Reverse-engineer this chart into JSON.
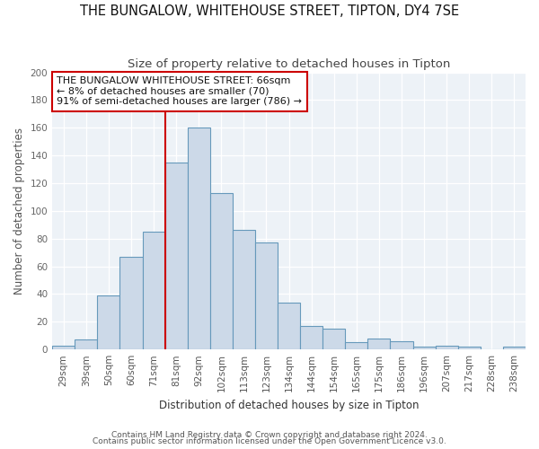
{
  "title": "THE BUNGALOW, WHITEHOUSE STREET, TIPTON, DY4 7SE",
  "subtitle": "Size of property relative to detached houses in Tipton",
  "xlabel": "Distribution of detached houses by size in Tipton",
  "ylabel": "Number of detached properties",
  "bar_labels": [
    "29sqm",
    "39sqm",
    "50sqm",
    "60sqm",
    "71sqm",
    "81sqm",
    "92sqm",
    "102sqm",
    "113sqm",
    "123sqm",
    "134sqm",
    "144sqm",
    "154sqm",
    "165sqm",
    "175sqm",
    "186sqm",
    "196sqm",
    "207sqm",
    "217sqm",
    "228sqm",
    "238sqm"
  ],
  "bar_values": [
    3,
    7,
    39,
    67,
    85,
    135,
    160,
    113,
    86,
    77,
    34,
    17,
    15,
    5,
    8,
    6,
    2,
    3,
    2,
    0,
    2
  ],
  "bar_color": "#ccd9e8",
  "bar_edge_color": "#6699bb",
  "vline_x": 4.5,
  "vline_color": "#cc0000",
  "annotation_text": "THE BUNGALOW WHITEHOUSE STREET: 66sqm\n← 8% of detached houses are smaller (70)\n91% of semi-detached houses are larger (786) →",
  "annotation_box_color": "#ffffff",
  "annotation_box_edge": "#cc0000",
  "ylim": [
    0,
    200
  ],
  "yticks": [
    0,
    20,
    40,
    60,
    80,
    100,
    120,
    140,
    160,
    180,
    200
  ],
  "footer1": "Contains HM Land Registry data © Crown copyright and database right 2024.",
  "footer2": "Contains public sector information licensed under the Open Government Licence v3.0.",
  "title_fontsize": 10.5,
  "subtitle_fontsize": 9.5,
  "axis_label_fontsize": 8.5,
  "tick_fontsize": 7.5,
  "annotation_fontsize": 8
}
